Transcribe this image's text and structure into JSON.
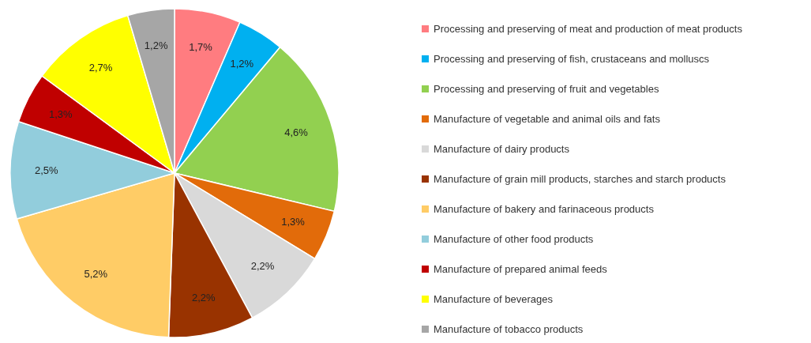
{
  "chart_data": {
    "type": "pie",
    "categories": [
      "Processing and preserving of meat and production of meat products",
      "Processing and preserving of fish, crustaceans and molluscs",
      "Processing and preserving of fruit and vegetables",
      "Manufacture of vegetable and animal oils and fats",
      "Manufacture of dairy products",
      "Manufacture of grain mill products, starches and starch products",
      "Manufacture of bakery and farinaceous products",
      "Manufacture of other food products",
      "Manufacture of prepared animal feeds",
      "Manufacture of beverages",
      "Manufacture of tobacco products"
    ],
    "values": [
      1.7,
      1.2,
      4.6,
      1.3,
      2.2,
      2.2,
      5.2,
      2.5,
      1.3,
      2.7,
      1.2
    ],
    "value_labels": [
      "1,7%",
      "1,2%",
      "4,6%",
      "1,3%",
      "2,2%",
      "2,2%",
      "5,2%",
      "2,5%",
      "1,3%",
      "2,7%",
      "1,2%"
    ],
    "colors": [
      "#ff7c80",
      "#00b0f0",
      "#92d050",
      "#e26b0a",
      "#d9d9d9",
      "#993300",
      "#ffcc66",
      "#92cddc",
      "#c00000",
      "#ffff00",
      "#a6a6a6"
    ],
    "legend": "right"
  }
}
